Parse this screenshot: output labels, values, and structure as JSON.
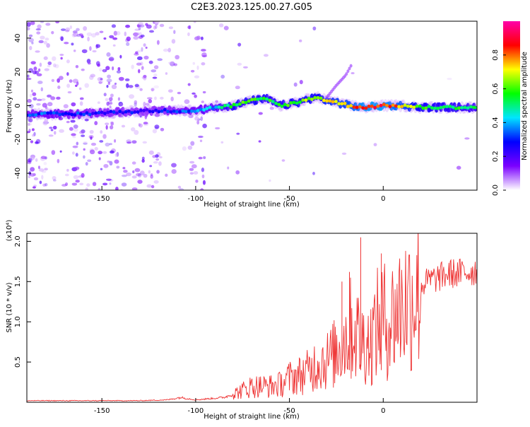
{
  "title": "C2E3.2023.125.00.27.G05",
  "chart_data": [
    {
      "type": "heatmap",
      "title": "C2E3.2023.125.00.27.G05",
      "xlabel": "Height of straight line (km)",
      "ylabel": "Frequency (Hz)",
      "xlim": [
        -190,
        50
      ],
      "ylim": [
        -50,
        50
      ],
      "xticks": [
        -150,
        -100,
        -50,
        0
      ],
      "yticks": [
        -40,
        -20,
        0,
        20,
        40
      ],
      "colorbar": {
        "label": "Normalized spectral amplitude",
        "range": [
          0,
          1
        ],
        "ticks": [
          0.0,
          0.2,
          0.4,
          0.6,
          0.8
        ],
        "colormap": [
          "#ffffff",
          "#7b00ff",
          "#0000ff",
          "#00e5ff",
          "#00ff00",
          "#ffff00",
          "#ff0000",
          "#ff00aa"
        ]
      },
      "ridge": {
        "x": [
          -188,
          -175,
          -165,
          -125,
          -110,
          -100,
          -90,
          -80,
          -70,
          -62,
          -55,
          -45,
          -40,
          -35,
          -30,
          -25,
          -18,
          -10,
          0,
          10,
          20,
          30,
          40,
          48
        ],
        "y": [
          -5,
          -5,
          -5,
          -3,
          -3,
          -3,
          -1,
          0,
          3,
          4,
          0,
          2,
          4,
          5,
          3,
          2,
          0,
          -1,
          0,
          0,
          -1,
          -1,
          -1,
          -1
        ],
        "amplitude": [
          0.3,
          0.35,
          0.3,
          0.25,
          0.3,
          0.35,
          0.4,
          0.55,
          0.6,
          0.55,
          0.55,
          0.6,
          0.65,
          0.6,
          0.7,
          0.7,
          0.75,
          0.85,
          0.85,
          0.75,
          0.6,
          0.55,
          0.55,
          0.5
        ]
      },
      "branch": {
        "x": [
          -30,
          -25,
          -20,
          -17
        ],
        "y": [
          5,
          12,
          18,
          24
        ]
      }
    },
    {
      "type": "line",
      "xlabel": "Height of straight line (km)",
      "ylabel": "SNR (10 * v/v)",
      "yunit": "(x10⁴)",
      "xlim": [
        -190,
        50
      ],
      "ylim": [
        0,
        2.1
      ],
      "xticks": [
        -150,
        -100,
        -50,
        0
      ],
      "yticks": [
        0.5,
        1.0,
        1.5,
        2.0
      ],
      "color": "#ee3333",
      "series": [
        {
          "x": [
            -190,
            -170,
            -150,
            -130,
            -115,
            -108,
            -100,
            -95,
            -90,
            -85,
            -80,
            -75,
            -70,
            -65,
            -60,
            -55,
            -50,
            -45,
            -40,
            -35,
            -30,
            -25,
            -20,
            -17,
            -14,
            -12,
            -10,
            -7,
            -4,
            -1,
            2,
            5,
            10,
            15,
            20,
            25,
            30,
            35,
            40,
            45,
            48
          ],
          "y": [
            0.02,
            0.02,
            0.02,
            0.02,
            0.03,
            0.06,
            0.03,
            0.04,
            0.05,
            0.06,
            0.1,
            0.15,
            0.2,
            0.2,
            0.2,
            0.22,
            0.3,
            0.33,
            0.38,
            0.5,
            0.52,
            0.62,
            0.8,
            0.92,
            0.88,
            0.7,
            0.8,
            0.72,
            0.92,
            1.05,
            1.0,
            1.05,
            1.22,
            1.3,
            1.45,
            1.52,
            1.55,
            1.6,
            1.6,
            1.62,
            1.63
          ]
        }
      ],
      "spikes": [
        {
          "x": -12,
          "y": 2.05
        },
        {
          "x": -1,
          "y": 1.85
        },
        {
          "x": -18,
          "y": 1.62
        },
        {
          "x": -22,
          "y": 1.5
        }
      ]
    }
  ]
}
